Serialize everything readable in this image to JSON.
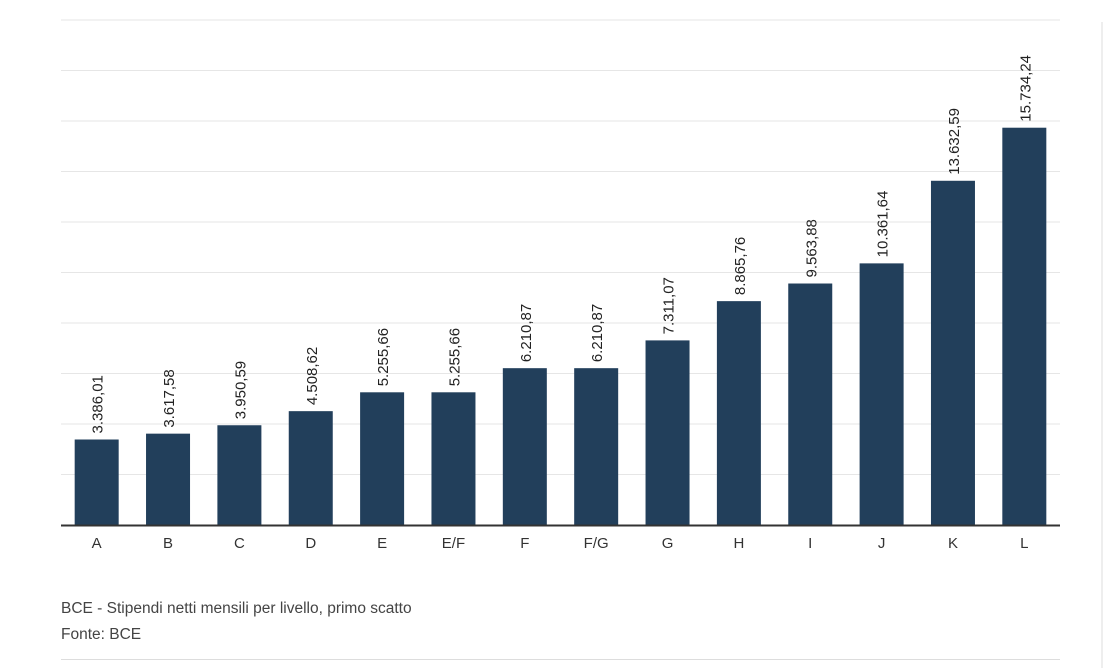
{
  "chart_data": {
    "type": "bar",
    "categories": [
      "A",
      "B",
      "C",
      "D",
      "E",
      "E/F",
      "F",
      "F/G",
      "G",
      "H",
      "I",
      "J",
      "K",
      "L"
    ],
    "values": [
      3386.01,
      3617.58,
      3950.59,
      4508.62,
      5255.66,
      5255.66,
      6210.87,
      6210.87,
      7311.07,
      8865.76,
      9563.88,
      10361.64,
      13632.59,
      15734.24
    ],
    "data_labels": [
      "3.386,01",
      "3.617,58",
      "3.950,59",
      "4.508,62",
      "5.255,66",
      "5.255,66",
      "6.210,87",
      "6.210,87",
      "7.311,07",
      "8.865,76",
      "9.563,88",
      "10.361,64",
      "13.632,59",
      "15.734,24"
    ],
    "ylim": [
      0,
      20000
    ],
    "grid": true,
    "bar_color": "#223f5b"
  },
  "caption": {
    "title": "BCE - Stipendi netti mensili per livello, primo scatto",
    "source": "Fonte: BCE"
  }
}
